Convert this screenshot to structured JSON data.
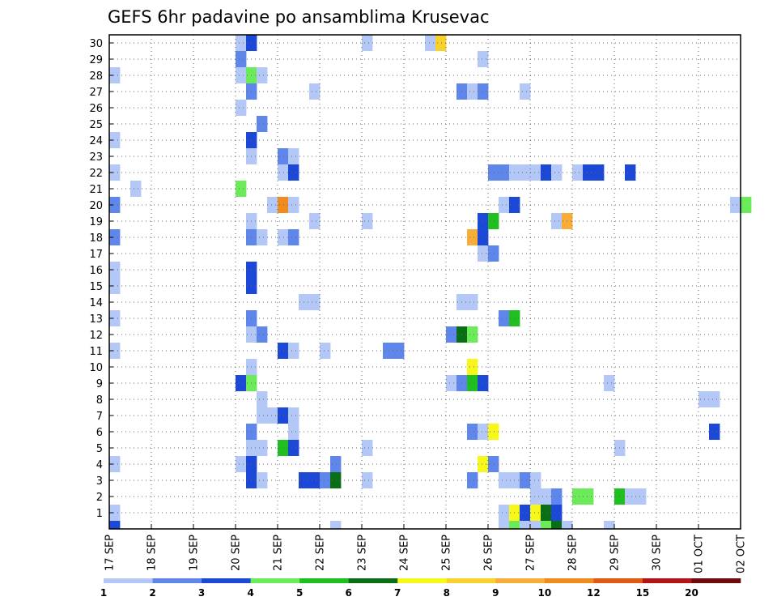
{
  "chart_data": {
    "type": "heatmap",
    "title": "GEFS 6hr padavine po ansamblima Krusevac",
    "y_ticks": [
      "1",
      "2",
      "3",
      "4",
      "5",
      "6",
      "7",
      "8",
      "9",
      "10",
      "11",
      "12",
      "13",
      "14",
      "15",
      "16",
      "17",
      "18",
      "19",
      "20",
      "21",
      "22",
      "23",
      "24",
      "25",
      "26",
      "27",
      "28",
      "29",
      "30"
    ],
    "x_ticks": [
      "17 SEP",
      "18 SEP",
      "19 SEP",
      "20 SEP",
      "21 SEP",
      "22 SEP",
      "23 SEP",
      "24 SEP",
      "25 SEP",
      "26 SEP",
      "27 SEP",
      "28 SEP",
      "29 SEP",
      "30 SEP",
      "01 OCT",
      "02 OCT"
    ],
    "x_steps_per_day": 4,
    "grid": true,
    "colorbar": {
      "levels": [
        "1",
        "2",
        "3",
        "4",
        "5",
        "6",
        "7",
        "8",
        "9",
        "10",
        "12",
        "15",
        "20"
      ],
      "colors": [
        "#b3c8f7",
        "#5f86ea",
        "#1c48d8",
        "#6bea5a",
        "#1ebf1e",
        "#0a6e14",
        "#f7f71a",
        "#f7d22c",
        "#f7ad38",
        "#f08c1e",
        "#e05a14",
        "#b41414",
        "#6e0a0a"
      ]
    },
    "cells": [
      {
        "m": 30,
        "s": [
          [
            12,
            0
          ],
          [
            13,
            2
          ],
          [
            24,
            0
          ],
          [
            30,
            0
          ],
          [
            31,
            7
          ]
        ]
      },
      {
        "m": 29,
        "s": [
          [
            12,
            1
          ],
          [
            35,
            0
          ]
        ]
      },
      {
        "m": 28,
        "s": [
          [
            0,
            0
          ],
          [
            12,
            0
          ],
          [
            13,
            3
          ],
          [
            14,
            0
          ]
        ]
      },
      {
        "m": 27,
        "s": [
          [
            13,
            1
          ],
          [
            19,
            0
          ],
          [
            33,
            1
          ],
          [
            34,
            0
          ],
          [
            35,
            1
          ],
          [
            39,
            0
          ]
        ]
      },
      {
        "m": 26,
        "s": [
          [
            12,
            0
          ]
        ]
      },
      {
        "m": 25,
        "s": [
          [
            14,
            1
          ]
        ]
      },
      {
        "m": 24,
        "s": [
          [
            0,
            0
          ],
          [
            13,
            2
          ]
        ]
      },
      {
        "m": 23,
        "s": [
          [
            13,
            0
          ],
          [
            16,
            1
          ],
          [
            17,
            0
          ]
        ]
      },
      {
        "m": 22,
        "s": [
          [
            0,
            0
          ],
          [
            16,
            0
          ],
          [
            17,
            2
          ],
          [
            36,
            1
          ],
          [
            37,
            1
          ],
          [
            38,
            0
          ],
          [
            39,
            0
          ],
          [
            40,
            0
          ],
          [
            41,
            2
          ],
          [
            42,
            0
          ],
          [
            44,
            0
          ],
          [
            45,
            2
          ],
          [
            46,
            2
          ],
          [
            49,
            2
          ]
        ]
      },
      {
        "m": 21,
        "s": [
          [
            2,
            0
          ],
          [
            12,
            3
          ]
        ]
      },
      {
        "m": 20,
        "s": [
          [
            0,
            1
          ],
          [
            15,
            0
          ],
          [
            16,
            9
          ],
          [
            17,
            0
          ],
          [
            37,
            0
          ],
          [
            38,
            2
          ],
          [
            59,
            0
          ],
          [
            60,
            3
          ]
        ]
      },
      {
        "m": 19,
        "s": [
          [
            13,
            0
          ],
          [
            19,
            0
          ],
          [
            24,
            0
          ],
          [
            35,
            2
          ],
          [
            36,
            4
          ],
          [
            42,
            0
          ],
          [
            43,
            8
          ]
        ]
      },
      {
        "m": 18,
        "s": [
          [
            0,
            1
          ],
          [
            13,
            1
          ],
          [
            14,
            0
          ],
          [
            16,
            0
          ],
          [
            17,
            1
          ],
          [
            34,
            8
          ],
          [
            35,
            2
          ]
        ]
      },
      {
        "m": 17,
        "s": [
          [
            35,
            0
          ],
          [
            36,
            1
          ]
        ]
      },
      {
        "m": 16,
        "s": [
          [
            0,
            0
          ],
          [
            13,
            2
          ]
        ]
      },
      {
        "m": 15,
        "s": [
          [
            0,
            0
          ],
          [
            13,
            2
          ]
        ]
      },
      {
        "m": 14,
        "s": [
          [
            18,
            0
          ],
          [
            19,
            0
          ],
          [
            33,
            0
          ],
          [
            34,
            0
          ]
        ]
      },
      {
        "m": 13,
        "s": [
          [
            0,
            0
          ],
          [
            13,
            1
          ],
          [
            37,
            1
          ],
          [
            38,
            4
          ]
        ]
      },
      {
        "m": 12,
        "s": [
          [
            13,
            0
          ],
          [
            14,
            1
          ],
          [
            32,
            1
          ],
          [
            33,
            5
          ],
          [
            34,
            3
          ]
        ]
      },
      {
        "m": 11,
        "s": [
          [
            0,
            0
          ],
          [
            16,
            2
          ],
          [
            17,
            0
          ],
          [
            20,
            0
          ],
          [
            26,
            1
          ],
          [
            27,
            1
          ]
        ]
      },
      {
        "m": 10,
        "s": [
          [
            13,
            0
          ],
          [
            34,
            6
          ]
        ]
      },
      {
        "m": 9,
        "s": [
          [
            12,
            2
          ],
          [
            13,
            3
          ],
          [
            32,
            0
          ],
          [
            33,
            1
          ],
          [
            34,
            4
          ],
          [
            35,
            2
          ],
          [
            47,
            0
          ]
        ]
      },
      {
        "m": 8,
        "s": [
          [
            14,
            0
          ],
          [
            56,
            0
          ],
          [
            57,
            0
          ]
        ]
      },
      {
        "m": 7,
        "s": [
          [
            14,
            0
          ],
          [
            15,
            0
          ],
          [
            16,
            2
          ],
          [
            17,
            0
          ]
        ]
      },
      {
        "m": 6,
        "s": [
          [
            13,
            1
          ],
          [
            17,
            0
          ],
          [
            34,
            1
          ],
          [
            35,
            0
          ],
          [
            36,
            6
          ],
          [
            57,
            2
          ]
        ]
      },
      {
        "m": 5,
        "s": [
          [
            13,
            0
          ],
          [
            14,
            0
          ],
          [
            16,
            4
          ],
          [
            17,
            2
          ],
          [
            24,
            0
          ],
          [
            48,
            0
          ]
        ]
      },
      {
        "m": 4,
        "s": [
          [
            0,
            0
          ],
          [
            12,
            0
          ],
          [
            13,
            2
          ],
          [
            21,
            1
          ],
          [
            35,
            6
          ],
          [
            36,
            1
          ]
        ]
      },
      {
        "m": 3,
        "s": [
          [
            13,
            2
          ],
          [
            14,
            0
          ],
          [
            18,
            2
          ],
          [
            19,
            2
          ],
          [
            20,
            1
          ],
          [
            21,
            5
          ],
          [
            24,
            0
          ],
          [
            34,
            1
          ],
          [
            37,
            0
          ],
          [
            38,
            0
          ],
          [
            39,
            1
          ],
          [
            40,
            0
          ]
        ]
      },
      {
        "m": 2,
        "s": [
          [
            40,
            0
          ],
          [
            41,
            0
          ],
          [
            42,
            1
          ],
          [
            44,
            3
          ],
          [
            45,
            3
          ],
          [
            48,
            4
          ],
          [
            49,
            0
          ],
          [
            50,
            0
          ]
        ]
      },
      {
        "m": 1,
        "s": [
          [
            0,
            0
          ],
          [
            37,
            0
          ],
          [
            38,
            6
          ],
          [
            39,
            2
          ],
          [
            40,
            6
          ],
          [
            41,
            5
          ],
          [
            42,
            2
          ]
        ]
      },
      {
        "m": 0,
        "s": [
          [
            0,
            2
          ],
          [
            21,
            0
          ],
          [
            37,
            0
          ],
          [
            38,
            3
          ],
          [
            39,
            0
          ],
          [
            40,
            0
          ],
          [
            41,
            3
          ],
          [
            42,
            5
          ],
          [
            43,
            0
          ],
          [
            47,
            0
          ]
        ]
      }
    ]
  }
}
